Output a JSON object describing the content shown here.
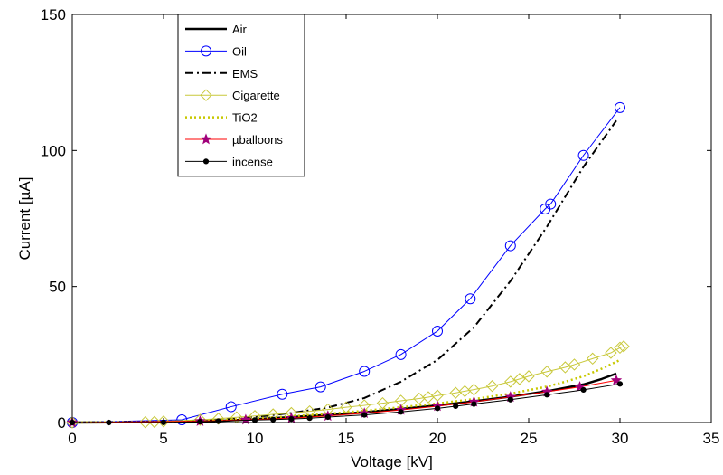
{
  "chart_data": {
    "type": "line",
    "title": "",
    "xlabel": "Voltage  [kV]",
    "ylabel": "Current  [µA]",
    "xlim": [
      0,
      35
    ],
    "ylim": [
      0,
      150
    ],
    "xticks": [
      0,
      5,
      10,
      15,
      20,
      25,
      30,
      35
    ],
    "yticks": [
      0,
      50,
      100,
      150
    ],
    "grid": false,
    "legend_position": "top-left",
    "series": [
      {
        "name": "Air",
        "color": "#000000",
        "line": "solid",
        "width": 2.5,
        "marker": "none",
        "x": [
          0,
          5,
          8,
          10,
          12,
          14,
          16,
          18,
          20,
          22,
          24,
          26,
          28,
          29,
          29.8
        ],
        "y": [
          0,
          0.2,
          0.6,
          1.2,
          2,
          2.8,
          3.8,
          5,
          6.3,
          7.8,
          9.5,
          11.5,
          14,
          16,
          18
        ]
      },
      {
        "name": "Oil",
        "color": "#0000ff",
        "line": "solid",
        "width": 1,
        "marker": "circle",
        "x": [
          0,
          6,
          8.7,
          11.5,
          13.6,
          16,
          18,
          20,
          21.8,
          24,
          25.9,
          26.2,
          28,
          30
        ],
        "y": [
          0,
          1,
          5.8,
          10.4,
          13.1,
          18.8,
          25,
          33.6,
          45.5,
          65,
          78.5,
          80.3,
          98.2,
          115.8
        ]
      },
      {
        "name": "EMS",
        "color": "#000000",
        "line": "dashdot",
        "width": 2,
        "marker": "none",
        "x": [
          0,
          5,
          8,
          10,
          12,
          14,
          16,
          18,
          20,
          22,
          24,
          26,
          28,
          29.8
        ],
        "y": [
          0,
          0.3,
          1,
          2,
          3.5,
          5.5,
          9,
          15,
          23,
          35,
          52,
          72,
          94,
          111
        ]
      },
      {
        "name": "Cigarette",
        "color": "#c8c83a",
        "line": "solid",
        "width": 1,
        "marker": "diamond",
        "x": [
          0,
          4,
          4.5,
          5,
          7,
          8,
          9,
          10,
          11,
          12,
          13,
          14,
          15,
          16,
          17,
          18,
          19,
          19.5,
          20,
          21,
          21.5,
          22,
          23,
          24,
          24.5,
          25,
          26,
          27,
          27.5,
          28.5,
          29.5,
          30,
          30.2
        ],
        "y": [
          0,
          0.1,
          0.2,
          0.4,
          1,
          1.4,
          1.9,
          2.4,
          3,
          3.5,
          4.1,
          4.8,
          5.6,
          6.3,
          7.1,
          8,
          8.8,
          9.3,
          9.9,
          10.9,
          11.5,
          12.1,
          13.4,
          15,
          16,
          17,
          18.7,
          20.3,
          21.3,
          23.5,
          25.6,
          27.5,
          28
        ]
      },
      {
        "name": "TiO2",
        "color": "#c8c800",
        "line": "dotted",
        "width": 2.5,
        "marker": "none",
        "x": [
          0,
          5,
          8,
          10,
          12,
          14,
          16,
          18,
          20,
          22,
          24,
          26,
          27,
          28,
          29,
          30
        ],
        "y": [
          0,
          0.2,
          0.8,
          1.5,
          2.3,
          3.2,
          4.3,
          5.6,
          7,
          8.6,
          10.6,
          13.2,
          15,
          17,
          19.8,
          23
        ]
      },
      {
        "name": "µballoons",
        "color": "#ff0000",
        "line": "solid",
        "width": 1,
        "marker": "star",
        "marker_color": "#a0007a",
        "x": [
          0,
          7,
          9.5,
          12,
          14,
          16,
          18,
          20,
          22,
          24,
          26,
          27.8,
          29.8
        ],
        "y": [
          0,
          0.5,
          1,
          1.6,
          2.4,
          3.4,
          4.6,
          6,
          7.6,
          9.4,
          11.3,
          13.1,
          15.5
        ]
      },
      {
        "name": "incense",
        "color": "#000000",
        "line": "solid",
        "width": 1,
        "marker": "dot",
        "x": [
          0,
          2,
          5,
          7,
          8,
          10,
          11,
          12,
          13,
          14,
          16,
          18,
          20,
          21,
          22,
          24,
          26,
          28,
          30
        ],
        "y": [
          0,
          0,
          0.05,
          0.3,
          0.5,
          0.9,
          1.1,
          1.3,
          1.6,
          2,
          2.8,
          3.9,
          5.2,
          6,
          6.8,
          8.4,
          10.2,
          12,
          14.2
        ]
      }
    ]
  }
}
